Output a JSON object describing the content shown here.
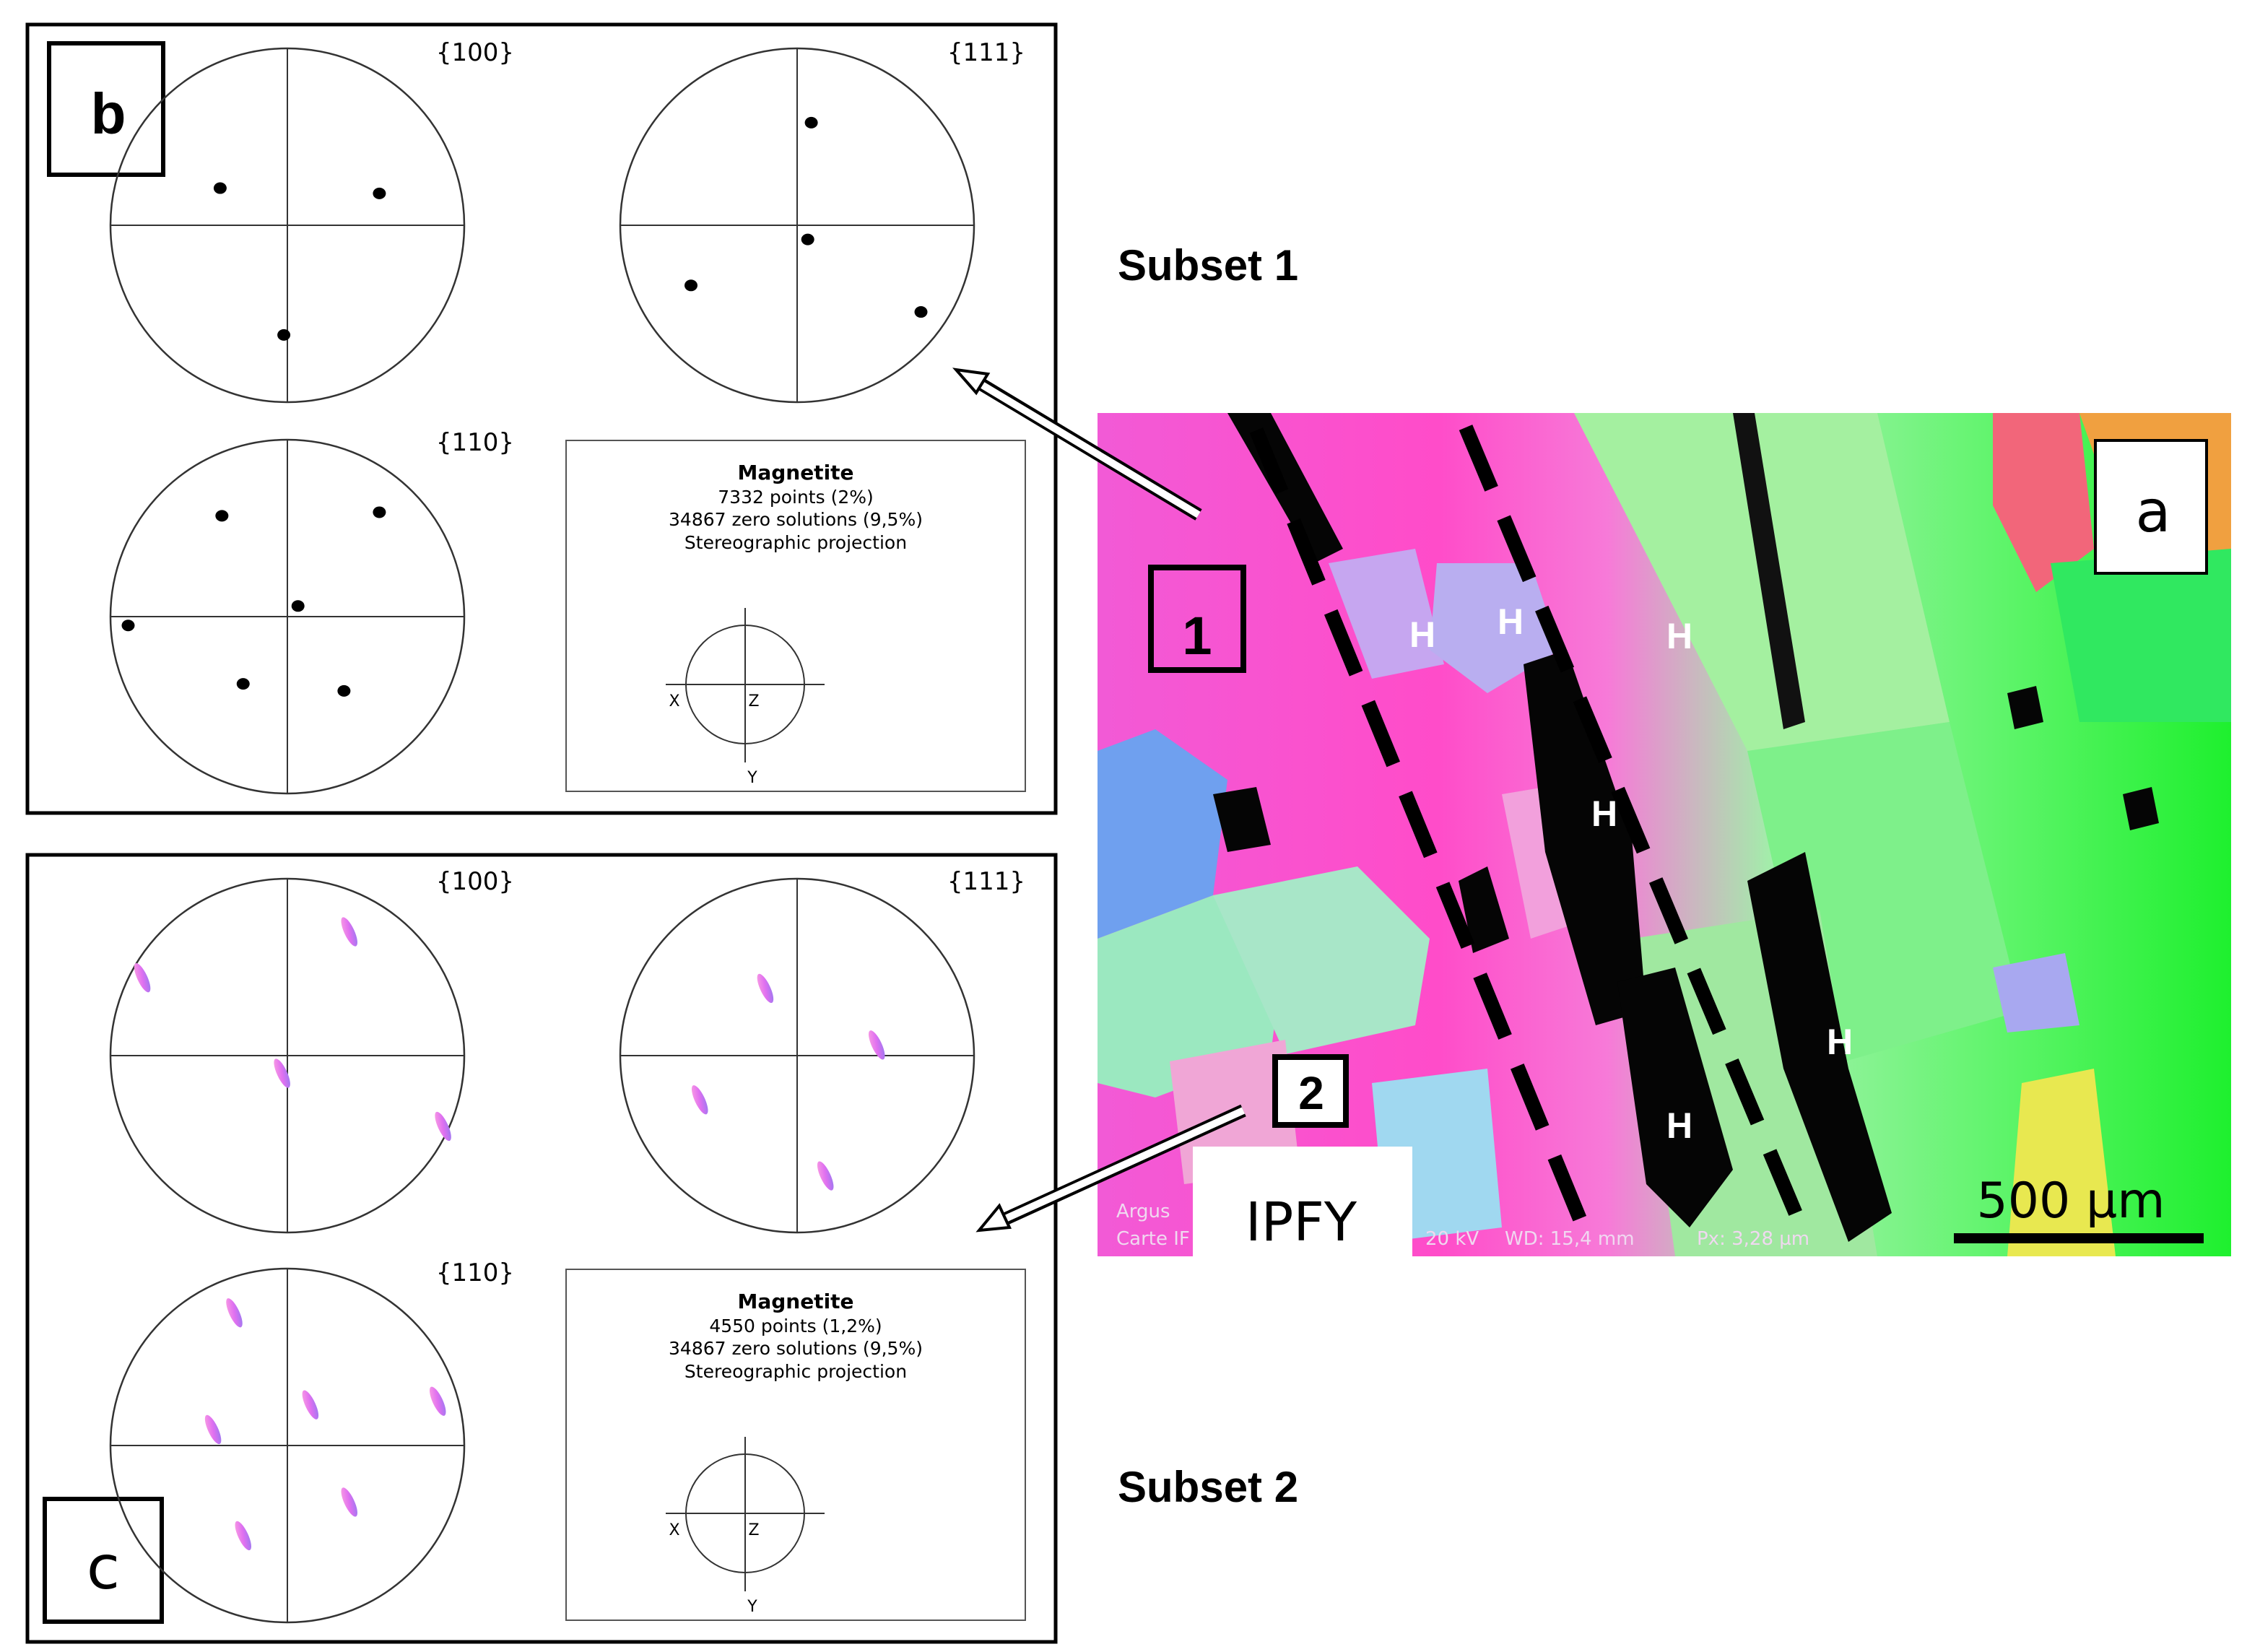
{
  "panel_b": {
    "tag": "b",
    "pole_figures": [
      {
        "label": "{100}",
        "spots": [
          [
            -0.38,
            0.21
          ],
          [
            0.52,
            0.18
          ],
          [
            -0.02,
            -0.62
          ]
        ]
      },
      {
        "label": "{111}",
        "spots": [
          [
            0.08,
            0.58
          ],
          [
            0.06,
            -0.08
          ],
          [
            -0.6,
            -0.34
          ],
          [
            0.7,
            -0.49
          ]
        ]
      },
      {
        "label": "{110}",
        "spots": [
          [
            -0.37,
            0.57
          ],
          [
            0.52,
            0.59
          ],
          [
            0.06,
            0.06
          ],
          [
            -0.9,
            -0.05
          ],
          [
            -0.25,
            -0.38
          ],
          [
            0.32,
            -0.42
          ]
        ]
      }
    ],
    "info": {
      "phase": "Magnetite",
      "points": "7332 points  (2%)",
      "zero_solutions": "34867 zero solutions (9,5%)",
      "projection": "Stereographic projection"
    }
  },
  "panel_c": {
    "tag": "c",
    "pole_figures": [
      {
        "label": "{100}",
        "spots": [
          [
            -0.82,
            0.44
          ],
          [
            0.35,
            0.7
          ],
          [
            -0.03,
            -0.1
          ],
          [
            0.88,
            -0.4
          ]
        ]
      },
      {
        "label": "{111}",
        "spots": [
          [
            -0.18,
            0.38
          ],
          [
            0.45,
            0.06
          ],
          [
            -0.55,
            -0.25
          ],
          [
            0.16,
            -0.68
          ]
        ]
      },
      {
        "label": "{110}",
        "spots": [
          [
            -0.3,
            0.75
          ],
          [
            0.85,
            0.25
          ],
          [
            0.13,
            0.23
          ],
          [
            -0.42,
            0.09
          ],
          [
            0.35,
            -0.32
          ],
          [
            -0.25,
            -0.51
          ]
        ]
      }
    ],
    "info": {
      "phase": "Magnetite",
      "points": "4550 points  (1,2%)",
      "zero_solutions": "34867 zero solutions (9,5%)",
      "projection": "Stereographic projection"
    }
  },
  "axes_glyph": {
    "x": "X",
    "z": "Z",
    "y": "Y"
  },
  "subset_labels": [
    "Subset 1",
    "Subset 2"
  ],
  "map_panel": {
    "tag": "a",
    "region_labels": [
      "1",
      "2"
    ],
    "h_label": "H",
    "ipf_label": "IPFY",
    "scale_bar": "500 µm",
    "footer_fragments": [
      "Argus",
      "Carte IF",
      "20 kV",
      "WD: 15,4 mm",
      "Px: 3,28 µm"
    ]
  }
}
